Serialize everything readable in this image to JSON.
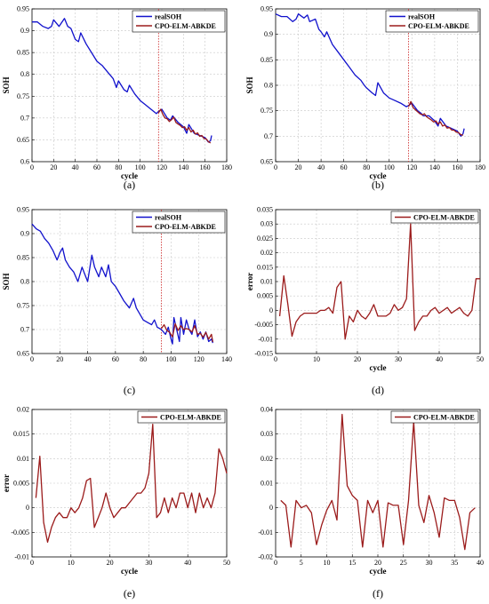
{
  "colors": {
    "real": "#1111cc",
    "pred": "#9b1b1b",
    "split": "#d23a3a",
    "grid": "#c8c8c8"
  },
  "chart_data": [
    {
      "type": "line",
      "caption": "(a)",
      "xlabel": "cycle",
      "ylabel": "SOH",
      "xlim": [
        0,
        180
      ],
      "ylim": [
        0.6,
        0.95
      ],
      "xticks": [
        0,
        20,
        40,
        60,
        80,
        100,
        120,
        140,
        160,
        180
      ],
      "yticks": [
        0.6,
        0.65,
        0.7,
        0.75,
        0.8,
        0.85,
        0.9,
        0.95
      ],
      "ytick_labels": [
        "0.6",
        "0.65",
        "0.7",
        "0.75",
        "0.8",
        "0.85",
        "0.9",
        "0.95"
      ],
      "grid": true,
      "legend_position": "top-right",
      "split_x": 117,
      "series": [
        {
          "name": "realSOH",
          "role": "real",
          "x": [
            0,
            5,
            10,
            15,
            18,
            20,
            25,
            30,
            33,
            36,
            40,
            43,
            45,
            50,
            55,
            60,
            65,
            70,
            75,
            78,
            80,
            85,
            88,
            90,
            95,
            100,
            105,
            110,
            115,
            117,
            120,
            125,
            128,
            130,
            135,
            140,
            143,
            145,
            150,
            155,
            160,
            163,
            165,
            166
          ],
          "y": [
            0.92,
            0.92,
            0.91,
            0.905,
            0.91,
            0.925,
            0.91,
            0.928,
            0.91,
            0.905,
            0.88,
            0.875,
            0.895,
            0.87,
            0.85,
            0.83,
            0.82,
            0.805,
            0.79,
            0.77,
            0.785,
            0.765,
            0.76,
            0.775,
            0.755,
            0.74,
            0.73,
            0.72,
            0.71,
            0.715,
            0.72,
            0.7,
            0.695,
            0.705,
            0.69,
            0.68,
            0.665,
            0.685,
            0.665,
            0.66,
            0.655,
            0.645,
            0.648,
            0.66
          ]
        },
        {
          "name": "CPO-ELM-ABKDE",
          "role": "pred",
          "x": [
            117,
            119,
            121,
            123,
            125,
            127,
            129,
            131,
            133,
            135,
            137,
            139,
            141,
            143,
            145,
            147,
            149,
            151,
            153,
            155,
            157,
            159,
            161,
            163,
            165
          ],
          "y": [
            0.712,
            0.72,
            0.708,
            0.7,
            0.698,
            0.692,
            0.696,
            0.702,
            0.69,
            0.686,
            0.683,
            0.678,
            0.68,
            0.672,
            0.678,
            0.668,
            0.672,
            0.663,
            0.666,
            0.658,
            0.66,
            0.653,
            0.652,
            0.646,
            0.643
          ]
        }
      ]
    },
    {
      "type": "line",
      "caption": "(b)",
      "xlabel": "cycle",
      "ylabel": "SOH",
      "xlim": [
        0,
        180
      ],
      "ylim": [
        0.65,
        0.95
      ],
      "xticks": [
        0,
        20,
        40,
        60,
        80,
        100,
        120,
        140,
        160,
        180
      ],
      "yticks": [
        0.65,
        0.7,
        0.75,
        0.8,
        0.85,
        0.9,
        0.95
      ],
      "ytick_labels": [
        "0.65",
        "0.7",
        "0.75",
        "0.8",
        "0.85",
        "0.9",
        "0.95"
      ],
      "grid": true,
      "legend_position": "top-right",
      "split_x": 117,
      "series": [
        {
          "name": "realSOH",
          "role": "real",
          "x": [
            0,
            5,
            10,
            15,
            18,
            20,
            25,
            28,
            30,
            35,
            38,
            40,
            43,
            45,
            50,
            55,
            60,
            65,
            70,
            75,
            78,
            80,
            85,
            88,
            90,
            95,
            100,
            105,
            110,
            115,
            117,
            120,
            125,
            128,
            130,
            135,
            140,
            143,
            145,
            150,
            155,
            160,
            163,
            165,
            166
          ],
          "y": [
            0.94,
            0.935,
            0.935,
            0.925,
            0.93,
            0.94,
            0.932,
            0.938,
            0.925,
            0.93,
            0.91,
            0.905,
            0.895,
            0.905,
            0.88,
            0.865,
            0.85,
            0.835,
            0.82,
            0.81,
            0.8,
            0.795,
            0.785,
            0.78,
            0.805,
            0.785,
            0.775,
            0.77,
            0.765,
            0.758,
            0.76,
            0.765,
            0.75,
            0.745,
            0.74,
            0.74,
            0.73,
            0.72,
            0.735,
            0.72,
            0.715,
            0.71,
            0.7,
            0.705,
            0.715
          ]
        },
        {
          "name": "CPO-ELM-ABKDE",
          "role": "pred",
          "x": [
            117,
            119,
            121,
            123,
            125,
            127,
            129,
            131,
            133,
            135,
            137,
            139,
            141,
            143,
            145,
            147,
            149,
            151,
            153,
            155,
            157,
            159,
            161,
            163,
            165
          ],
          "y": [
            0.758,
            0.768,
            0.756,
            0.752,
            0.748,
            0.744,
            0.742,
            0.744,
            0.738,
            0.735,
            0.732,
            0.728,
            0.73,
            0.724,
            0.728,
            0.72,
            0.722,
            0.716,
            0.717,
            0.712,
            0.712,
            0.708,
            0.707,
            0.703,
            0.702
          ]
        }
      ]
    },
    {
      "type": "line",
      "caption": "(c)",
      "xlabel": "",
      "ylabel": "SOH",
      "xlim": [
        0,
        140
      ],
      "ylim": [
        0.65,
        0.95
      ],
      "xticks": [
        0,
        20,
        40,
        60,
        80,
        100,
        120,
        140
      ],
      "yticks": [
        0.65,
        0.7,
        0.75,
        0.8,
        0.85,
        0.9,
        0.95
      ],
      "ytick_labels": [
        "0.65",
        "0.7",
        "0.75",
        "0.8",
        "0.85",
        "0.9",
        "0.95"
      ],
      "grid": true,
      "legend_position": "top-right",
      "split_x": 93,
      "series": [
        {
          "name": "realSOH",
          "role": "real",
          "x": [
            0,
            3,
            6,
            9,
            12,
            15,
            18,
            20,
            22,
            24,
            27,
            30,
            33,
            36,
            38,
            40,
            43,
            45,
            48,
            50,
            53,
            55,
            57,
            60,
            63,
            66,
            70,
            73,
            75,
            78,
            80,
            83,
            86,
            88,
            90,
            93,
            96,
            98,
            100,
            101,
            102,
            104,
            106,
            107,
            109,
            111,
            113,
            115,
            117,
            119,
            121,
            123,
            125,
            127,
            129,
            130
          ],
          "y": [
            0.92,
            0.91,
            0.905,
            0.89,
            0.88,
            0.865,
            0.845,
            0.86,
            0.87,
            0.845,
            0.83,
            0.82,
            0.8,
            0.83,
            0.815,
            0.8,
            0.855,
            0.83,
            0.81,
            0.83,
            0.81,
            0.835,
            0.8,
            0.79,
            0.775,
            0.76,
            0.745,
            0.765,
            0.745,
            0.73,
            0.72,
            0.715,
            0.71,
            0.72,
            0.705,
            0.7,
            0.69,
            0.705,
            0.68,
            0.67,
            0.725,
            0.7,
            0.675,
            0.725,
            0.69,
            0.72,
            0.7,
            0.69,
            0.72,
            0.685,
            0.695,
            0.68,
            0.695,
            0.675,
            0.68,
            0.672
          ]
        },
        {
          "name": "CPO-ELM-ABKDE",
          "role": "pred",
          "x": [
            93,
            95,
            97,
            99,
            101,
            103,
            105,
            107,
            109,
            111,
            113,
            115,
            117,
            119,
            121,
            123,
            125,
            127,
            129,
            130
          ],
          "y": [
            0.702,
            0.71,
            0.698,
            0.694,
            0.685,
            0.712,
            0.698,
            0.708,
            0.7,
            0.702,
            0.7,
            0.695,
            0.708,
            0.69,
            0.692,
            0.684,
            0.694,
            0.68,
            0.69,
            0.674
          ]
        }
      ]
    },
    {
      "type": "line",
      "caption": "(d)",
      "xlabel": "cycle",
      "ylabel": "error",
      "xlim": [
        0,
        50
      ],
      "ylim": [
        -0.015,
        0.035
      ],
      "xticks": [
        0,
        10,
        20,
        30,
        40,
        50
      ],
      "yticks": [
        -0.015,
        -0.01,
        -0.005,
        0,
        0.005,
        0.01,
        0.015,
        0.02,
        0.025,
        0.03,
        0.035
      ],
      "ytick_labels": [
        "-0.015",
        "-0.01",
        "-0.005",
        "0",
        "0.005",
        "0.01",
        "0.015",
        "0.02",
        "0.025",
        "0.03",
        "0.035"
      ],
      "grid": true,
      "legend_position": "top-right",
      "series": [
        {
          "name": "CPO-ELM-ABKDE",
          "role": "pred",
          "x": [
            1,
            2,
            3,
            4,
            5,
            6,
            7,
            8,
            9,
            10,
            11,
            12,
            13,
            14,
            15,
            16,
            17,
            18,
            19,
            20,
            21,
            22,
            23,
            24,
            25,
            26,
            27,
            28,
            29,
            30,
            31,
            32,
            33,
            34,
            35,
            36,
            37,
            38,
            39,
            40,
            41,
            42,
            43,
            44,
            45,
            46,
            47,
            48,
            49,
            50
          ],
          "y": [
            -0.002,
            0.012,
            0.002,
            -0.009,
            -0.004,
            -0.002,
            -0.001,
            -0.001,
            -0.001,
            -0.001,
            0.0,
            0.0,
            0.001,
            -0.001,
            0.008,
            0.01,
            -0.01,
            -0.002,
            -0.004,
            0.0,
            -0.002,
            -0.003,
            -0.001,
            0.002,
            -0.002,
            -0.002,
            -0.002,
            -0.001,
            0.002,
            0.0,
            0.001,
            0.004,
            0.03,
            -0.007,
            -0.004,
            -0.002,
            -0.002,
            0.0,
            0.001,
            -0.001,
            0.0,
            0.001,
            -0.001,
            0.0,
            0.001,
            -0.001,
            -0.002,
            0.0,
            0.011,
            0.011
          ]
        }
      ]
    },
    {
      "type": "line",
      "caption": "(e)",
      "xlabel": "cycle",
      "ylabel": "error",
      "xlim": [
        0,
        50
      ],
      "ylim": [
        -0.01,
        0.02
      ],
      "xticks": [
        0,
        10,
        20,
        30,
        40,
        50
      ],
      "yticks": [
        -0.01,
        -0.005,
        0,
        0.005,
        0.01,
        0.015,
        0.02
      ],
      "ytick_labels": [
        "-0.01",
        "-0.005",
        "0",
        "0.005",
        "0.01",
        "0.015",
        "0.02"
      ],
      "grid": true,
      "legend_position": "top-right",
      "series": [
        {
          "name": "CPO-ELM-ABKDE",
          "role": "pred",
          "x": [
            1,
            2,
            3,
            4,
            5,
            6,
            7,
            8,
            9,
            10,
            11,
            12,
            13,
            14,
            15,
            16,
            17,
            18,
            19,
            20,
            21,
            22,
            23,
            24,
            25,
            26,
            27,
            28,
            29,
            30,
            31,
            32,
            33,
            34,
            35,
            36,
            37,
            38,
            39,
            40,
            41,
            42,
            43,
            44,
            45,
            46,
            47,
            48,
            49,
            50
          ],
          "y": [
            0.002,
            0.0105,
            -0.003,
            -0.007,
            -0.004,
            -0.002,
            -0.001,
            -0.002,
            -0.002,
            0.0,
            -0.001,
            0.0,
            0.002,
            0.0055,
            0.006,
            -0.004,
            -0.002,
            0.0,
            0.003,
            0.0,
            -0.002,
            -0.001,
            0.0,
            0.0,
            0.001,
            0.002,
            0.003,
            0.003,
            0.004,
            0.007,
            0.017,
            -0.002,
            -0.001,
            0.002,
            -0.001,
            0.002,
            0.0,
            0.003,
            0.003,
            0.0,
            0.003,
            -0.001,
            0.003,
            0.0,
            0.002,
            0.0,
            0.003,
            0.012,
            0.01,
            0.007
          ]
        }
      ]
    },
    {
      "type": "line",
      "caption": "(f)",
      "xlabel": "cycle",
      "ylabel": "",
      "xlim": [
        0,
        40
      ],
      "ylim": [
        -0.02,
        0.04
      ],
      "xticks": [
        0,
        5,
        10,
        15,
        20,
        25,
        30,
        35,
        40
      ],
      "yticks": [
        -0.02,
        -0.01,
        0,
        0.01,
        0.02,
        0.03,
        0.04
      ],
      "ytick_labels": [
        "-0.02",
        "-0.01",
        "0",
        "0.01",
        "0.02",
        "0.03",
        "0.04"
      ],
      "grid": true,
      "legend_position": "top-right",
      "series": [
        {
          "name": "CPO-ELM-ABKDE",
          "role": "pred",
          "x": [
            1,
            2,
            3,
            4,
            5,
            6,
            7,
            8,
            9,
            10,
            11,
            12,
            13,
            14,
            15,
            16,
            17,
            18,
            19,
            20,
            21,
            22,
            23,
            24,
            25,
            26,
            27,
            28,
            29,
            30,
            31,
            32,
            33,
            34,
            35,
            36,
            37,
            38,
            39
          ],
          "y": [
            0.003,
            0.001,
            -0.016,
            0.003,
            0.0,
            0.001,
            -0.002,
            -0.015,
            -0.007,
            -0.001,
            0.003,
            -0.005,
            0.038,
            0.009,
            0.005,
            0.003,
            -0.016,
            0.003,
            -0.002,
            0.003,
            -0.016,
            0.002,
            0.001,
            0.001,
            -0.015,
            0.003,
            0.035,
            0.001,
            -0.006,
            0.005,
            -0.002,
            -0.012,
            0.004,
            0.003,
            0.003,
            -0.004,
            -0.017,
            -0.002,
            0.0
          ]
        }
      ]
    }
  ]
}
